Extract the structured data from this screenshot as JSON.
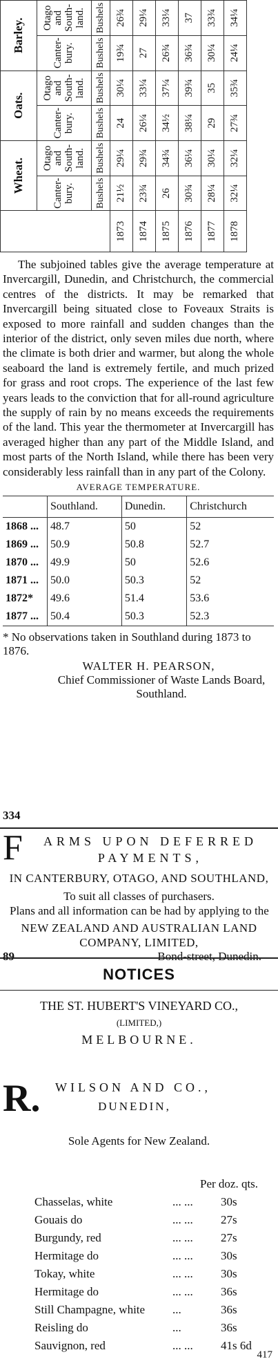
{
  "yield_table": {
    "groups": [
      "Wheat.",
      "Oats.",
      "Barley."
    ],
    "columns": [
      {
        "name": "Canter-bury.",
        "unit": "Bushels"
      },
      {
        "name": "Otago and South-land.",
        "unit": "Bushels"
      },
      {
        "name": "Canter-bury.",
        "unit": "Bushels"
      },
      {
        "name": "Otago and South-land.",
        "unit": "Bushels"
      },
      {
        "name": "Canter-bury.",
        "unit": "Bushels"
      },
      {
        "name": "Otago and South-land.",
        "unit": "Bushels"
      }
    ],
    "rows": [
      [
        "1873",
        "21½",
        "29¼",
        "24",
        "30¼",
        "19¾",
        "26¾"
      ],
      [
        "1874",
        "23¾",
        "29¾",
        "26¼",
        "33¼",
        "27",
        "29¼"
      ],
      [
        "1875",
        "26",
        "34¾",
        "34½",
        "37¼",
        "26¾",
        "33¼"
      ],
      [
        "1876",
        "30¾",
        "36¼",
        "38¼",
        "39¾",
        "36¾",
        "37"
      ],
      [
        "1877",
        "28¼",
        "30¼",
        "29",
        "35",
        "30¼",
        "33¾"
      ],
      [
        "1878",
        "32¼",
        "32¼",
        "27¾",
        "35¾",
        "24¼",
        "34¼"
      ]
    ]
  },
  "article": {
    "paragraph": "The subjoined tables give the average temperature at Invercargill, Dunedin, and Christchurch, the commercial centres of the districts. It may be remarked that Invercargill being situated close to Foveaux Straits is exposed to more rainfall and sudden changes than the interior of the district, only seven miles due north, where the climate is both drier and warmer, but along the whole seaboard the land is extremely fertile, and much prized for grass and root crops. The experience of the last few years leads to the conviction that for all-round agriculture the supply of rain by no means exceeds the requirements of the land. This year the thermometer at Invercargill has averaged higher than any part of the Middle Island, and most parts of the North Island, while there has been very considerably less rainfall than in any part of the Colony.",
    "table_title": "AVERAGE TEMPERATURE.",
    "temperature_table": {
      "header": [
        "Southland.",
        "Dunedin.",
        "Christchurch"
      ],
      "rows": [
        [
          "1868 ...",
          "48.7",
          "50",
          "52"
        ],
        [
          "1869 ...",
          "50.9",
          "50.8",
          "52.7"
        ],
        [
          "1870 ...",
          "49.9",
          "50",
          "52.6"
        ],
        [
          "1871 ...",
          "50.0",
          "50.3",
          "52"
        ],
        [
          "1872*",
          "49.6",
          "51.4",
          "53.6"
        ],
        [
          "1877 ...",
          "50.4",
          "50.3",
          "52.3"
        ]
      ]
    },
    "footnote": "* No observations taken in Southland during 1873 to 1876.",
    "signature": "WALTER H. PEARSON,",
    "signature_title": "Chief Commissioner of Waste Lands Board, Southland.",
    "ref": "334"
  },
  "farms_ad": {
    "drop_cap": "F",
    "headline": "ARMS UPON DEFERRED PAYMENTS,",
    "regions": "IN CANTERBURY, OTAGO, AND SOUTHLAND,",
    "tagline": "To suit all classes of purchasers.",
    "info": "Plans and all information can be had by applying to the",
    "company": "NEW ZEALAND AND AUSTRALIAN LAND COMPANY, LIMITED,",
    "ref": "89",
    "address": "Bond-street, Dunedin."
  },
  "notices_heading": "NOTICES",
  "vineyard_ad": {
    "company": "THE ST. HUBERT'S VINEYARD CO.,",
    "limited": "(LIMITED,)",
    "city": "MELBOURNE.",
    "drop_cap": "R.",
    "agent": "WILSON AND CO.,",
    "agent_city": "DUNEDIN,",
    "agents_note": "Sole Agents for New Zealand.",
    "price_header": "Per doz. qts.",
    "items": [
      {
        "name": "Chasselas, white",
        "leader": "...      ...",
        "price": "30s"
      },
      {
        "name": "Gouais do",
        "leader": "...      ...",
        "price": "27s"
      },
      {
        "name": "Burgundy, red",
        "leader": "...      ...",
        "price": "27s"
      },
      {
        "name": "Hermitage do",
        "leader": "...      ...",
        "price": "30s"
      },
      {
        "name": "Tokay, white",
        "leader": "...      ...",
        "price": "30s"
      },
      {
        "name": "Hermitage do",
        "leader": "...      ...",
        "price": "36s"
      },
      {
        "name": "Still Champagne, white",
        "leader": "...",
        "price": "36s"
      },
      {
        "name": "Reisling do",
        "leader": "...",
        "price": "36s"
      },
      {
        "name": "Sauvignon, red",
        "leader": "...      ...",
        "price": "41s 6d"
      }
    ],
    "ref": "417"
  }
}
